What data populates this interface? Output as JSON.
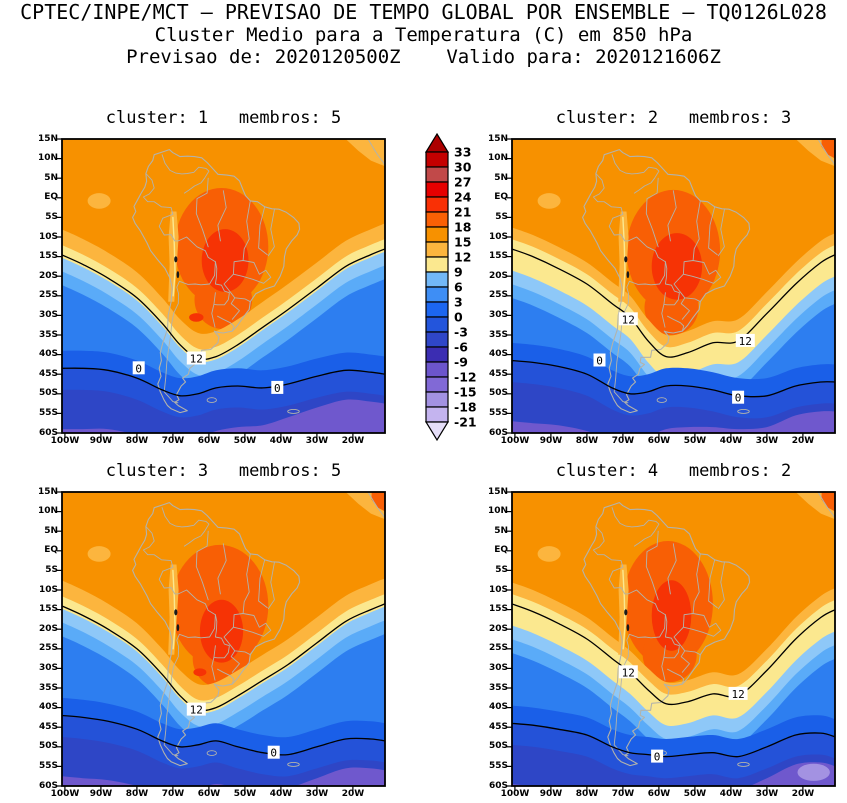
{
  "header": {
    "line1": "CPTEC/INPE/MCT – PREVISAO DE TEMPO GLOBAL POR ENSEMBLE – TQ0126L028",
    "line2": "Cluster Medio para a Temperatura (C) em 850 hPa",
    "line3": "Previsao de: 2020120500Z    Valido para: 2020121606Z"
  },
  "chart_data": {
    "type": "heatmap",
    "subtype": "filled_contour_ensemble_cluster_maps",
    "title": "Cluster Medio para a Temperatura (C) em 850 hPa",
    "model": "TQ0126L028",
    "init_time": "2020120500Z",
    "valid_time": "2020121606Z",
    "variable": "Temperatura (C)",
    "level": "850 hPa",
    "region": {
      "lon_labels": [
        "100W",
        "20W"
      ],
      "lat_labels": [
        "15N",
        "60S"
      ]
    },
    "x_ticks": [
      "100W",
      "90W",
      "80W",
      "70W",
      "60W",
      "50W",
      "40W",
      "30W",
      "20W"
    ],
    "y_ticks": [
      "15N",
      "10N",
      "5N",
      "EQ",
      "5S",
      "10S",
      "15S",
      "20S",
      "25S",
      "30S",
      "35S",
      "40S",
      "45S",
      "50S",
      "55S",
      "60S"
    ],
    "contour_line_levels": [
      12,
      0
    ],
    "panels": [
      {
        "cluster": 1,
        "membros": 5,
        "title": "cluster: 1   membros: 5",
        "contour_labels": [
          {
            "value": 12,
            "lon": -63.5,
            "lat": -41
          },
          {
            "value": 0,
            "lon": -79.5,
            "lat": -43.5
          },
          {
            "value": 0,
            "lon": -41,
            "lat": -48.5
          }
        ]
      },
      {
        "cluster": 2,
        "membros": 3,
        "title": "cluster: 2   membros: 3",
        "contour_labels": [
          {
            "value": 12,
            "lon": -68.5,
            "lat": -31
          },
          {
            "value": 12,
            "lon": -36,
            "lat": -36.5
          },
          {
            "value": 0,
            "lon": -76.5,
            "lat": -41.5
          },
          {
            "value": 0,
            "lon": -38,
            "lat": -51
          }
        ]
      },
      {
        "cluster": 3,
        "membros": 5,
        "title": "cluster: 3   membros: 5",
        "contour_labels": [
          {
            "value": 12,
            "lon": -63.5,
            "lat": -40.5
          },
          {
            "value": 0,
            "lon": -42,
            "lat": -51.5
          }
        ]
      },
      {
        "cluster": 4,
        "membros": 2,
        "title": "cluster: 4   membros: 2",
        "contour_labels": [
          {
            "value": 12,
            "lon": -68.5,
            "lat": -31
          },
          {
            "value": 12,
            "lon": -38,
            "lat": -36.5
          },
          {
            "value": 0,
            "lon": -60.5,
            "lat": -52.5
          }
        ]
      }
    ],
    "colorbar": {
      "levels": [
        33,
        30,
        27,
        24,
        21,
        18,
        15,
        12,
        9,
        6,
        3,
        0,
        -3,
        -6,
        -9,
        -12,
        -15,
        -18,
        -21
      ],
      "box_colors": [
        "#c40000",
        "#c14949",
        "#e60000",
        "#f93005",
        "#fa6005",
        "#f79100",
        "#fcb53e",
        "#fbe88f",
        "#72b8f8",
        "#3e8ef5",
        "#1c66f0",
        "#2355dc",
        "#2f46c8",
        "#3b2db2",
        "#6c55cc",
        "#8169d6",
        "#a392e2",
        "#c4b4ef"
      ],
      "arrow_top_color": "#ac0000",
      "arrow_bottom_color": "#e5def8"
    },
    "map_colors": {
      "base_orange": "#f79100",
      "light_orange": "#fcb53e",
      "yellow": "#fbe88f",
      "red_blob": "#f85f05",
      "red_core": "#f63305",
      "blue1": "#8ec8f8",
      "blue2": "#5aabf8",
      "blue3": "#2d7ef0",
      "blue4": "#1a5fe8",
      "blue5": "#2452d8",
      "blue6": "#2e46c6",
      "purple": "#6f58cd",
      "light_purple": "#a392e2",
      "coastline_gray": "#b3b3ab"
    }
  }
}
